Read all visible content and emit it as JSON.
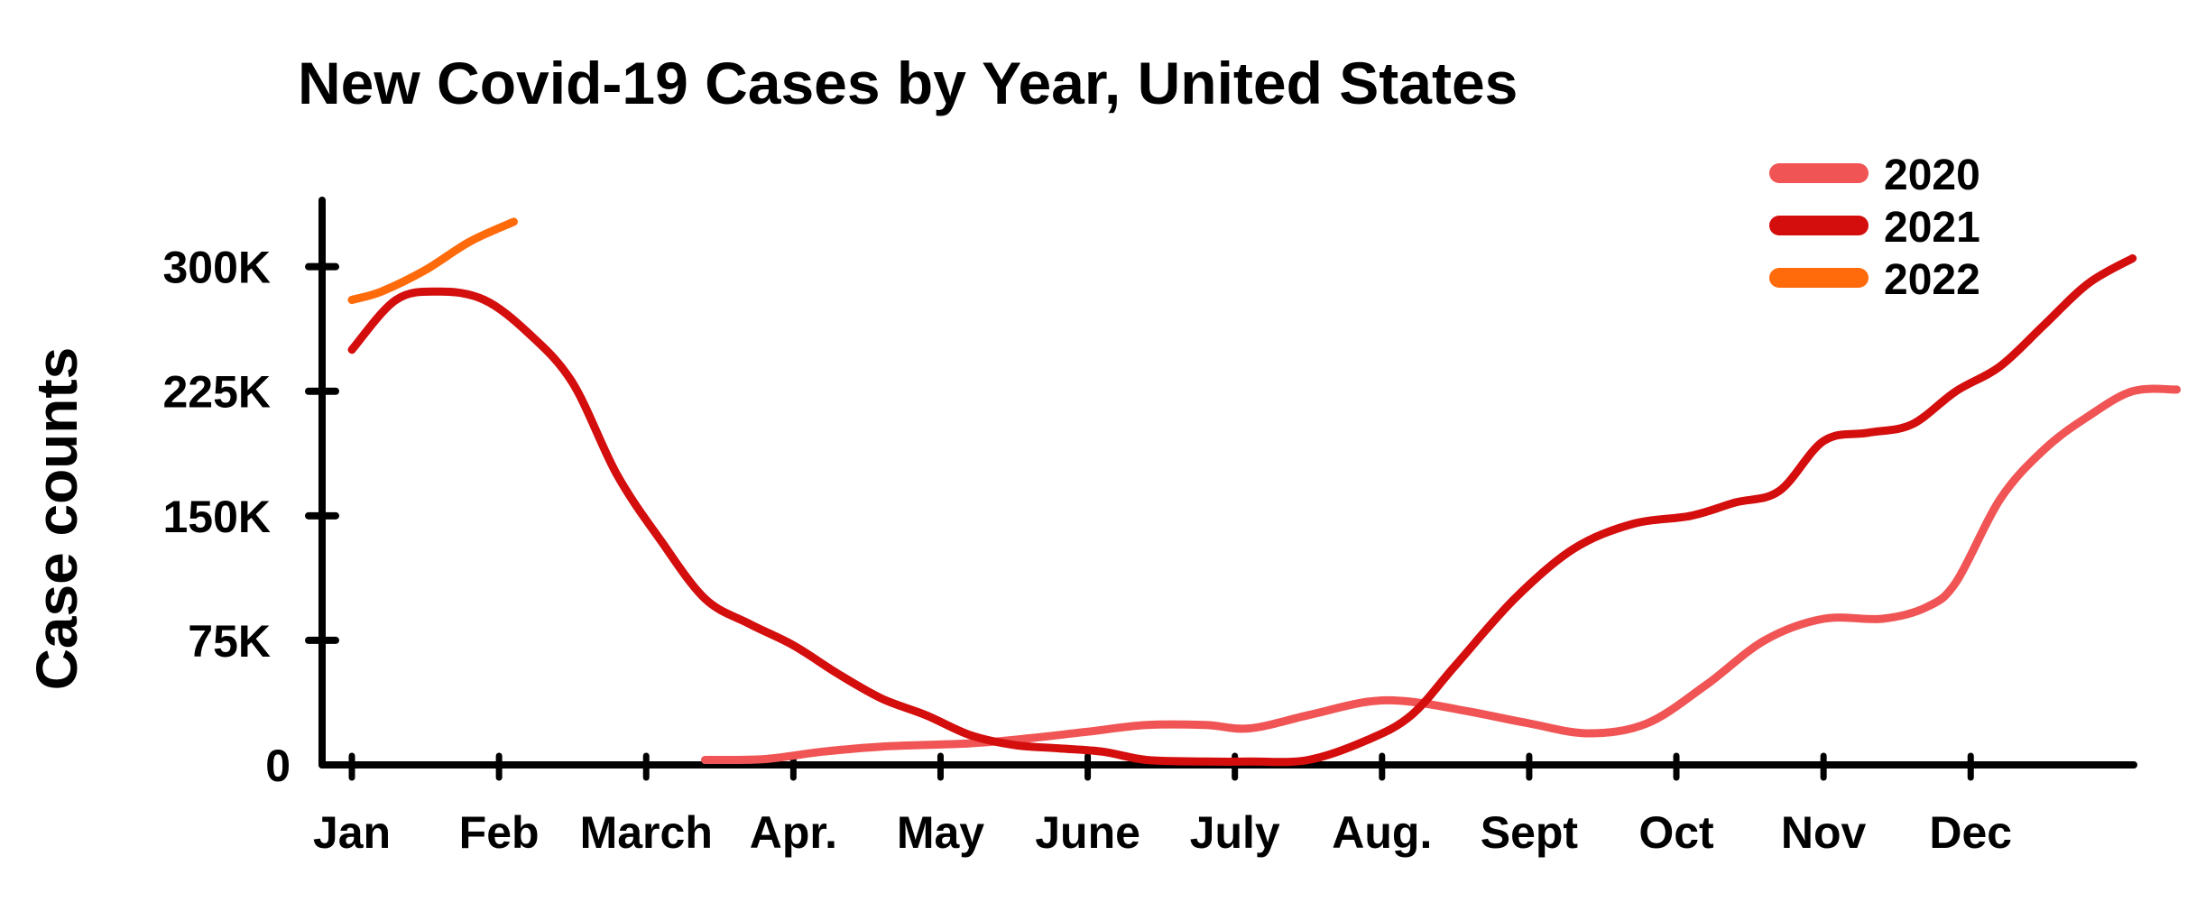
{
  "chart_data": {
    "type": "line",
    "title": "New Covid-19 Cases by Year, United States",
    "ylabel": "Case counts",
    "xlabel": "",
    "x_ticks": [
      "Jan",
      "Feb",
      "March",
      "Apr.",
      "May",
      "June",
      "July",
      "Aug.",
      "Sept",
      "Oct",
      "Nov",
      "Dec"
    ],
    "y_ticks": [
      {
        "value": 0,
        "label": "0"
      },
      {
        "value": 75000,
        "label": "75K"
      },
      {
        "value": 150000,
        "label": "150K"
      },
      {
        "value": 225000,
        "label": "225K"
      },
      {
        "value": 300000,
        "label": "300K"
      }
    ],
    "ylim": [
      0,
      340000
    ],
    "xlim": [
      0,
      12.2
    ],
    "grid": false,
    "legend": "top-right",
    "series": [
      {
        "name": "2020",
        "color": "#f05454",
        "points": [
          [
            2.4,
            3000
          ],
          [
            2.8,
            3500
          ],
          [
            3.2,
            8000
          ],
          [
            3.6,
            11000
          ],
          [
            4.2,
            13000
          ],
          [
            4.6,
            16000
          ],
          [
            5.0,
            20000
          ],
          [
            5.4,
            24000
          ],
          [
            5.8,
            24000
          ],
          [
            6.1,
            22000
          ],
          [
            6.5,
            30000
          ],
          [
            6.9,
            38000
          ],
          [
            7.2,
            38000
          ],
          [
            7.6,
            32000
          ],
          [
            8.0,
            25000
          ],
          [
            8.4,
            19000
          ],
          [
            8.8,
            25000
          ],
          [
            9.2,
            48000
          ],
          [
            9.6,
            75000
          ],
          [
            10.0,
            88000
          ],
          [
            10.4,
            88000
          ],
          [
            10.7,
            95000
          ],
          [
            10.9,
            110000
          ],
          [
            11.2,
            160000
          ],
          [
            11.5,
            190000
          ],
          [
            11.8,
            210000
          ],
          [
            12.1,
            225000
          ],
          [
            12.4,
            226000
          ]
        ]
      },
      {
        "name": "2021",
        "color": "#d40d0d",
        "points": [
          [
            0.0,
            250000
          ],
          [
            0.3,
            280000
          ],
          [
            0.6,
            285000
          ],
          [
            0.9,
            280000
          ],
          [
            1.2,
            260000
          ],
          [
            1.5,
            230000
          ],
          [
            1.8,
            175000
          ],
          [
            2.1,
            135000
          ],
          [
            2.4,
            100000
          ],
          [
            2.7,
            85000
          ],
          [
            3.0,
            72000
          ],
          [
            3.3,
            55000
          ],
          [
            3.6,
            40000
          ],
          [
            3.9,
            30000
          ],
          [
            4.2,
            18000
          ],
          [
            4.5,
            12000
          ],
          [
            4.8,
            10000
          ],
          [
            5.1,
            8000
          ],
          [
            5.4,
            3000
          ],
          [
            5.8,
            2000
          ],
          [
            6.1,
            2000
          ],
          [
            6.5,
            3000
          ],
          [
            6.9,
            15000
          ],
          [
            7.2,
            30000
          ],
          [
            7.5,
            60000
          ],
          [
            7.9,
            100000
          ],
          [
            8.3,
            130000
          ],
          [
            8.7,
            145000
          ],
          [
            9.1,
            150000
          ],
          [
            9.4,
            158000
          ],
          [
            9.7,
            165000
          ],
          [
            10.0,
            195000
          ],
          [
            10.3,
            200000
          ],
          [
            10.6,
            205000
          ],
          [
            10.9,
            225000
          ],
          [
            11.2,
            240000
          ],
          [
            11.5,
            265000
          ],
          [
            11.8,
            290000
          ],
          [
            12.1,
            305000
          ]
        ]
      },
      {
        "name": "2022",
        "color": "#ff6a0a",
        "points": [
          [
            0.0,
            280000
          ],
          [
            0.2,
            285000
          ],
          [
            0.5,
            298000
          ],
          [
            0.8,
            315000
          ],
          [
            1.1,
            327000
          ]
        ]
      }
    ]
  }
}
